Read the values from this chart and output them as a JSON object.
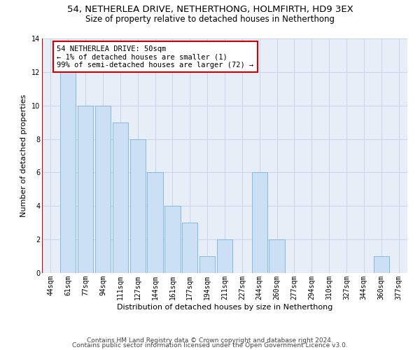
{
  "title": "54, NETHERLEA DRIVE, NETHERTHONG, HOLMFIRTH, HD9 3EX",
  "subtitle": "Size of property relative to detached houses in Netherthong",
  "xlabel": "Distribution of detached houses by size in Netherthong",
  "ylabel": "Number of detached properties",
  "categories": [
    "44sqm",
    "61sqm",
    "77sqm",
    "94sqm",
    "111sqm",
    "127sqm",
    "144sqm",
    "161sqm",
    "177sqm",
    "194sqm",
    "211sqm",
    "227sqm",
    "244sqm",
    "260sqm",
    "277sqm",
    "294sqm",
    "310sqm",
    "327sqm",
    "344sqm",
    "360sqm",
    "377sqm"
  ],
  "values": [
    0,
    12,
    10,
    10,
    9,
    8,
    6,
    4,
    3,
    1,
    2,
    0,
    6,
    2,
    0,
    0,
    0,
    0,
    0,
    1,
    0
  ],
  "bar_color": "#cce0f5",
  "bar_edge_color": "#7ab3d9",
  "highlight_line_color": "#cc0000",
  "annotation_text": "54 NETHERLEA DRIVE: 50sqm\n← 1% of detached houses are smaller (1)\n99% of semi-detached houses are larger (72) →",
  "annotation_box_color": "#ffffff",
  "annotation_box_edge_color": "#cc0000",
  "ylim": [
    0,
    14
  ],
  "yticks": [
    0,
    2,
    4,
    6,
    8,
    10,
    12,
    14
  ],
  "footer_line1": "Contains HM Land Registry data © Crown copyright and database right 2024.",
  "footer_line2": "Contains public sector information licensed under the Open Government Licence v3.0.",
  "bg_color": "#ffffff",
  "plot_bg_color": "#e8eef8",
  "grid_color": "#c8d4e8",
  "title_fontsize": 9.5,
  "subtitle_fontsize": 8.5,
  "xlabel_fontsize": 8,
  "ylabel_fontsize": 8,
  "tick_fontsize": 7,
  "annotation_fontsize": 7.5,
  "footer_fontsize": 6.5
}
